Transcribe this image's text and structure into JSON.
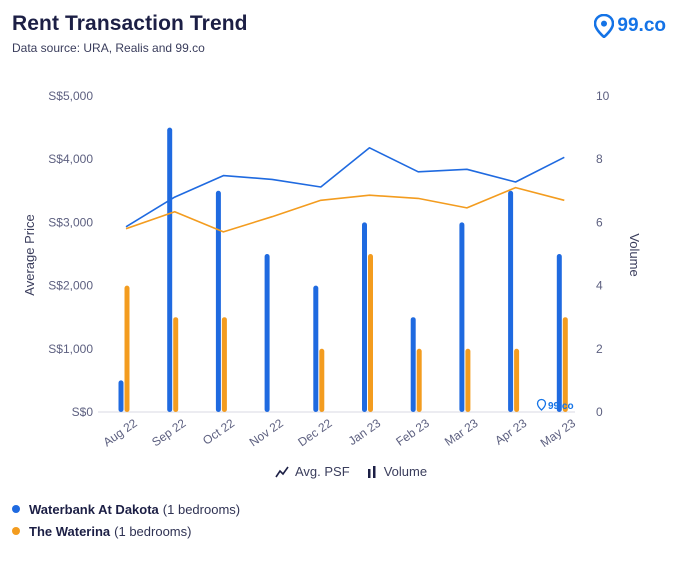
{
  "header": {
    "title": "Rent Transaction Trend",
    "subtitle": "Data source: URA, Realis and 99.co",
    "logo_text": "99.co",
    "logo_icon": "location-pin-icon"
  },
  "watermark": "99.co",
  "toggles": {
    "avg_psf_label": "Avg. PSF",
    "volume_label": "Volume"
  },
  "legend": [
    {
      "name": "Waterbank At Dakota",
      "extra": "(1 bedrooms)",
      "color": "#1f6ae0"
    },
    {
      "name": "The Waterina",
      "extra": "(1 bedrooms)",
      "color": "#f39c1f"
    }
  ],
  "chart_data": {
    "type": "bar",
    "categories": [
      "Aug 22",
      "Sep 22",
      "Oct 22",
      "Nov 22",
      "Dec 22",
      "Jan 23",
      "Feb 23",
      "Mar 23",
      "Apr 23",
      "May 23"
    ],
    "y_left": {
      "label": "Average Price",
      "ticks": [
        "S$0",
        "S$1,000",
        "S$2,000",
        "S$3,000",
        "S$4,000",
        "S$5,000"
      ],
      "range": [
        0,
        5000
      ]
    },
    "y_right": {
      "label": "Volume",
      "ticks": [
        "0",
        "2",
        "4",
        "6",
        "8",
        "10"
      ],
      "range": [
        0,
        10
      ]
    },
    "volume_series": [
      {
        "name": "Waterbank At Dakota",
        "color": "#1f6ae0",
        "values": [
          1,
          9,
          7,
          5,
          4,
          6,
          3,
          6,
          7,
          5
        ]
      },
      {
        "name": "The Waterina",
        "color": "#f39c1f",
        "values": [
          4,
          3,
          3,
          0,
          2,
          5,
          2,
          2,
          2,
          3
        ]
      }
    ],
    "price_series": [
      {
        "name": "Waterbank At Dakota",
        "color": "#1f6ae0",
        "values": [
          2930,
          3400,
          3740,
          3680,
          3560,
          4180,
          3800,
          3840,
          3640,
          4030
        ]
      },
      {
        "name": "The Waterina",
        "color": "#f39c1f",
        "values": [
          2900,
          3170,
          2850,
          3090,
          3350,
          3430,
          3380,
          3230,
          3550,
          3350
        ]
      }
    ],
    "grid": false
  }
}
